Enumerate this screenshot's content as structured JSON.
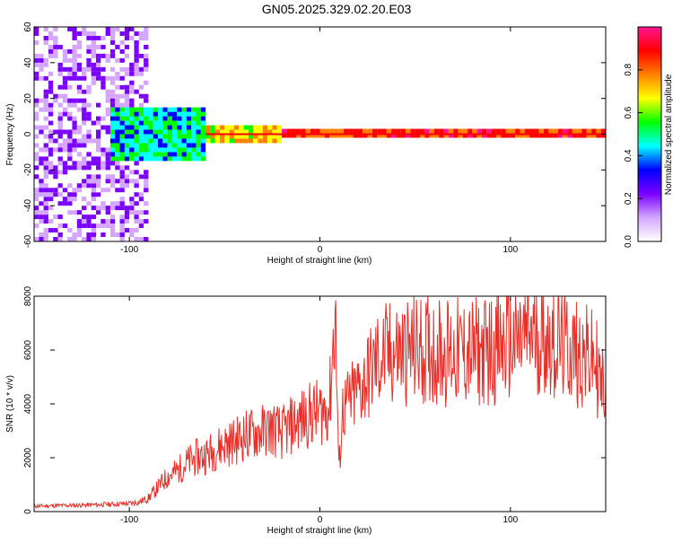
{
  "figure": {
    "title": "GN05.2025.329.02.20.E03"
  },
  "chart_data": [
    {
      "type": "heatmap",
      "title": "GN05.2025.329.02.20.E03",
      "xlabel": "Height of straight line (km)",
      "ylabel": "Frequency (Hz)",
      "xlim": [
        -150,
        150
      ],
      "ylim": [
        -60,
        60
      ],
      "x_ticks": [
        -100,
        0,
        100
      ],
      "y_ticks": [
        -60,
        -40,
        -20,
        0,
        20,
        40,
        60
      ],
      "grid": false,
      "colorbar": {
        "label": "Normalized spectral amplitude",
        "range": [
          0.0,
          1.0
        ],
        "ticks": [
          0.0,
          0.2,
          0.4,
          0.6,
          0.8
        ],
        "tick_labels": [
          "0.0",
          "0.2",
          "0.4",
          "0.6",
          "0.8"
        ],
        "colors": [
          "#ffffff",
          "#d4a6ff",
          "#7a00ff",
          "#0000ff",
          "#00ffff",
          "#00ff00",
          "#ffff00",
          "#ff8000",
          "#ff0000",
          "#ff1493"
        ]
      },
      "regions": [
        {
          "x_range": [
            -150,
            -90
          ],
          "freq_range": [
            -60,
            60
          ],
          "amplitude": 0.15
        },
        {
          "x_range": [
            -110,
            -60
          ],
          "freq_range": [
            -15,
            15
          ],
          "amplitude": 0.45
        },
        {
          "x_range": [
            -60,
            -20
          ],
          "freq_range": [
            -5,
            5
          ],
          "amplitude": 0.7
        },
        {
          "x_range": [
            -20,
            150
          ],
          "freq_range": [
            -2,
            2
          ],
          "amplitude": 0.85
        }
      ]
    },
    {
      "type": "line",
      "xlabel": "Height of straight line (km)",
      "ylabel": "SNR (10 * v/v)",
      "xlim": [
        -150,
        150
      ],
      "ylim": [
        0,
        8000
      ],
      "x_ticks": [
        -100,
        0,
        100
      ],
      "y_ticks": [
        0,
        2000,
        4000,
        6000,
        8000
      ],
      "grid": false,
      "color": "#e8302a",
      "x": [
        -150,
        -140,
        -130,
        -120,
        -110,
        -100,
        -95,
        -90,
        -85,
        -80,
        -75,
        -70,
        -65,
        -60,
        -55,
        -50,
        -45,
        -40,
        -35,
        -30,
        -25,
        -20,
        -15,
        -10,
        -5,
        0,
        5,
        8,
        10,
        12,
        15,
        20,
        25,
        30,
        35,
        40,
        50,
        60,
        70,
        80,
        90,
        100,
        105,
        110,
        115,
        120,
        125,
        130,
        135,
        140,
        145,
        148,
        150
      ],
      "y": [
        200,
        220,
        230,
        250,
        270,
        300,
        350,
        500,
        900,
        1300,
        1500,
        1800,
        2000,
        2100,
        2300,
        2500,
        2600,
        2800,
        2900,
        3000,
        3100,
        2900,
        3200,
        3400,
        3600,
        3700,
        3900,
        7500,
        1500,
        3800,
        4000,
        4500,
        5000,
        5600,
        5800,
        5900,
        6000,
        6000,
        5900,
        5900,
        6000,
        6200,
        6300,
        6600,
        6500,
        6400,
        6200,
        6100,
        5900,
        5700,
        5500,
        4500,
        5000
      ]
    }
  ]
}
